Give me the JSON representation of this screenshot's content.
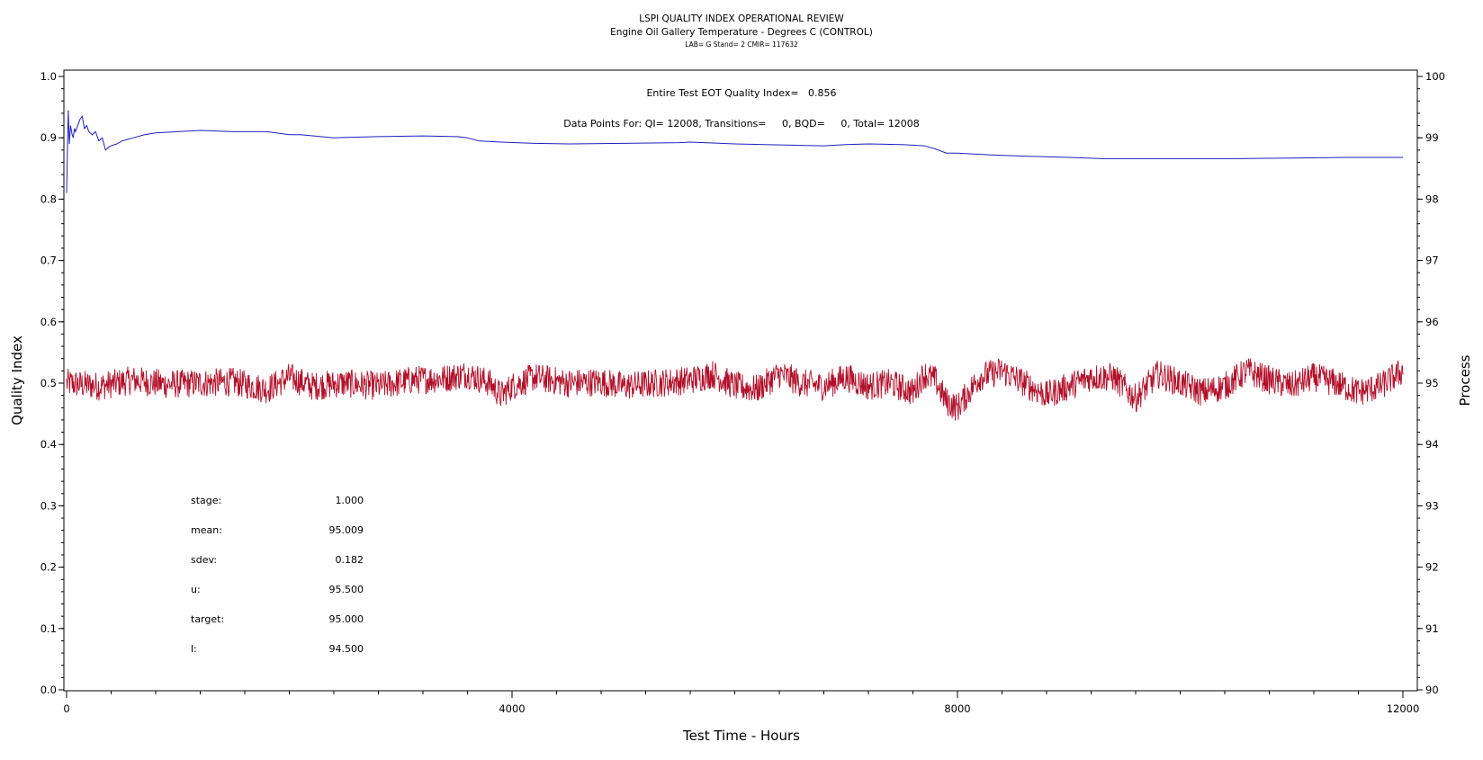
{
  "chart_data": {
    "type": "line",
    "title": "LSPI QUALITY INDEX OPERATIONAL REVIEW",
    "subtitle": "Engine Oil Gallery Temperature - Degrees C (CONTROL)",
    "subtitle2": "LAB= G Stand= 2 CMIR= 117632",
    "annotation_qi": "Entire Test EOT Quality Index=   0.856",
    "annotation_points": "Data Points For: QI= 12008, Transitions=     0, BQD=     0, Total= 12008",
    "xlabel": "Test Time - Hours",
    "ylabel_left": "Quality Index",
    "ylabel_right": "Process",
    "xlim": [
      0,
      12000
    ],
    "ylim_left": [
      0.0,
      1.0
    ],
    "ylim_right": [
      90,
      100
    ],
    "x_ticks": [
      "0",
      "4000",
      "8000",
      "12000"
    ],
    "y_left_ticks": [
      "0.0",
      "0.1",
      "0.2",
      "0.3",
      "0.4",
      "0.5",
      "0.6",
      "0.7",
      "0.8",
      "0.9",
      "1.0"
    ],
    "y_right_ticks": [
      "90",
      "91",
      "92",
      "93",
      "94",
      "95",
      "96",
      "97",
      "98",
      "99",
      "100"
    ],
    "grid": false,
    "series": [
      {
        "axis": "left",
        "color": "#1f1fbf",
        "x": [
          0,
          15,
          25,
          35,
          50,
          60,
          70,
          80,
          100,
          120,
          140,
          160,
          180,
          200,
          230,
          260,
          290,
          320,
          350,
          380,
          400,
          450,
          500,
          600,
          700,
          800,
          1000,
          1200,
          1500,
          1800,
          2000,
          2100,
          2400,
          2800,
          3200,
          3500,
          3600,
          3700,
          3900,
          4200,
          4500,
          5000,
          5500,
          5600,
          6000,
          6500,
          6800,
          7000,
          7200,
          7500,
          7700,
          7800,
          7900,
          8000,
          8300,
          8600,
          9000,
          9300,
          9500,
          10000,
          10500,
          11000,
          11500,
          12000
        ],
        "values": [
          0.81,
          0.945,
          0.89,
          0.92,
          0.905,
          0.9,
          0.915,
          0.91,
          0.92,
          0.93,
          0.935,
          0.915,
          0.92,
          0.91,
          0.905,
          0.91,
          0.895,
          0.9,
          0.88,
          0.885,
          0.887,
          0.89,
          0.895,
          0.9,
          0.905,
          0.908,
          0.91,
          0.912,
          0.91,
          0.91,
          0.905,
          0.905,
          0.9,
          0.902,
          0.903,
          0.902,
          0.9,
          0.895,
          0.893,
          0.891,
          0.89,
          0.891,
          0.892,
          0.893,
          0.89,
          0.888,
          0.887,
          0.889,
          0.89,
          0.889,
          0.887,
          0.882,
          0.875,
          0.875,
          0.872,
          0.87,
          0.868,
          0.866,
          0.866,
          0.866,
          0.866,
          0.867,
          0.868,
          0.868
        ]
      },
      {
        "axis": "right",
        "color": "#b2102a",
        "x": [
          0,
          300,
          600,
          900,
          1200,
          1500,
          1800,
          2000,
          2200,
          2500,
          2800,
          3100,
          3400,
          3600,
          3800,
          3900,
          4000,
          4200,
          4500,
          4800,
          5000,
          5300,
          5600,
          5800,
          6000,
          6200,
          6400,
          6600,
          6800,
          7000,
          7200,
          7400,
          7600,
          7700,
          7800,
          7900,
          8000,
          8100,
          8200,
          8400,
          8600,
          8800,
          9000,
          9200,
          9400,
          9600,
          9800,
          10000,
          10200,
          10400,
          10600,
          10800,
          11000,
          11200,
          11400,
          11600,
          11800,
          12000
        ],
        "values": [
          95.0,
          94.95,
          95.05,
          94.98,
          95.0,
          95.02,
          94.9,
          95.1,
          94.95,
          95.0,
          94.95,
          95.05,
          95.08,
          95.15,
          95.0,
          94.8,
          94.95,
          95.1,
          95.0,
          95.02,
          94.95,
          95.0,
          95.05,
          95.15,
          94.95,
          94.9,
          95.15,
          95.0,
          94.95,
          95.1,
          94.95,
          95.0,
          94.85,
          95.15,
          95.05,
          94.7,
          94.6,
          94.85,
          95.1,
          95.2,
          95.0,
          94.8,
          94.95,
          95.1,
          95.1,
          94.75,
          95.15,
          95.0,
          94.85,
          94.95,
          95.2,
          95.05,
          94.95,
          95.1,
          95.0,
          94.85,
          94.95,
          95.2
        ],
        "noise_sdev": 0.182
      }
    ],
    "stats": [
      {
        "label": "stage:",
        "value": "1.000"
      },
      {
        "label": "mean:",
        "value": "95.009"
      },
      {
        "label": "sdev:",
        "value": "0.182"
      },
      {
        "label": "u:",
        "value": "95.500"
      },
      {
        "label": "target:",
        "value": "95.000"
      },
      {
        "label": "l:",
        "value": "94.500"
      }
    ]
  }
}
